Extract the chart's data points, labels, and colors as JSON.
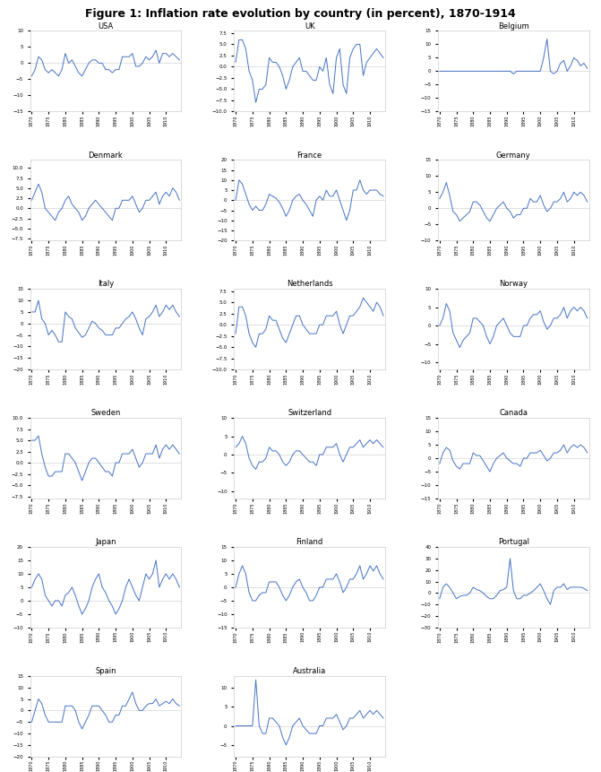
{
  "title": "Figure 1: Inflation rate evolution by country (in percent), 1870-1914",
  "years": [
    1870,
    1871,
    1872,
    1873,
    1874,
    1875,
    1876,
    1877,
    1878,
    1879,
    1880,
    1881,
    1882,
    1883,
    1884,
    1885,
    1886,
    1887,
    1888,
    1889,
    1890,
    1891,
    1892,
    1893,
    1894,
    1895,
    1896,
    1897,
    1898,
    1899,
    1900,
    1901,
    1902,
    1903,
    1904,
    1905,
    1906,
    1907,
    1908,
    1909,
    1910,
    1911,
    1912,
    1913,
    1914
  ],
  "line_color": "#4472C4",
  "countries": {
    "USA": [
      -4,
      -2,
      2,
      1,
      -2,
      -3,
      -2,
      -3,
      -4,
      -2,
      3,
      0,
      1,
      -1,
      -3,
      -4,
      -2,
      0,
      1,
      1,
      0,
      0,
      -2,
      -2,
      -3,
      -2,
      -2,
      2,
      2,
      2,
      3,
      -1,
      -1,
      0,
      2,
      1,
      2,
      4,
      0,
      3,
      3,
      2,
      3,
      2,
      1
    ],
    "UK": [
      1,
      6,
      6,
      4,
      -1,
      -3,
      -8,
      -5,
      -5,
      -4,
      2,
      1,
      1,
      0,
      -2,
      -5,
      -3,
      0,
      1,
      2,
      -1,
      -1,
      -2,
      -3,
      -3,
      0,
      -1,
      2,
      -4,
      -6,
      2,
      4,
      -4,
      -6,
      2,
      4,
      5,
      5,
      -2,
      1,
      2,
      3,
      4,
      3,
      2
    ],
    "Belgium": [
      0,
      0,
      0,
      0,
      0,
      0,
      0,
      0,
      0,
      0,
      0,
      0,
      0,
      0,
      0,
      0,
      0,
      0,
      0,
      0,
      0,
      0,
      -1,
      0,
      0,
      0,
      0,
      0,
      0,
      0,
      0,
      5,
      12,
      0,
      -1,
      0,
      3,
      4,
      0,
      2,
      5,
      4,
      2,
      3,
      1
    ],
    "Denmark": [
      2,
      4,
      6,
      4,
      0,
      -1,
      -2,
      -3,
      -1,
      0,
      2,
      3,
      1,
      0,
      -1,
      -3,
      -2,
      0,
      1,
      2,
      1,
      0,
      -1,
      -2,
      -3,
      0,
      0,
      2,
      2,
      2,
      3,
      1,
      -1,
      0,
      2,
      2,
      3,
      4,
      1,
      3,
      4,
      3,
      5,
      4,
      2
    ],
    "France": [
      0,
      10,
      8,
      3,
      -2,
      -5,
      -3,
      -5,
      -5,
      -2,
      3,
      2,
      1,
      -1,
      -4,
      -8,
      -5,
      0,
      2,
      3,
      0,
      -2,
      -5,
      -8,
      0,
      2,
      0,
      5,
      2,
      2,
      5,
      0,
      -5,
      -10,
      -5,
      5,
      5,
      10,
      5,
      3,
      5,
      5,
      5,
      3,
      2
    ],
    "Germany": [
      3,
      5,
      8,
      4,
      -1,
      -2,
      -4,
      -3,
      -2,
      -1,
      2,
      2,
      1,
      -1,
      -3,
      -4,
      -2,
      0,
      1,
      2,
      0,
      -1,
      -3,
      -2,
      -2,
      0,
      0,
      3,
      2,
      2,
      4,
      1,
      -1,
      0,
      2,
      2,
      3,
      5,
      2,
      3,
      5,
      4,
      5,
      4,
      2
    ],
    "Italy": [
      5,
      5,
      10,
      2,
      0,
      -5,
      -3,
      -5,
      -8,
      -8,
      5,
      3,
      2,
      -2,
      -4,
      -6,
      -5,
      -2,
      1,
      0,
      -2,
      -3,
      -5,
      -5,
      -5,
      -2,
      -2,
      0,
      2,
      3,
      5,
      2,
      -2,
      -5,
      2,
      3,
      5,
      8,
      3,
      5,
      8,
      6,
      8,
      5,
      3
    ],
    "Netherlands": [
      -2,
      4,
      4,
      2,
      -2,
      -4,
      -5,
      -2,
      -2,
      -1,
      2,
      1,
      1,
      -1,
      -3,
      -4,
      -2,
      0,
      2,
      2,
      0,
      -1,
      -2,
      -2,
      -2,
      0,
      0,
      2,
      2,
      2,
      3,
      0,
      -2,
      0,
      2,
      2,
      3,
      4,
      6,
      5,
      4,
      3,
      5,
      4,
      2
    ],
    "Norway": [
      0,
      2,
      6,
      4,
      -2,
      -4,
      -6,
      -4,
      -3,
      -2,
      2,
      2,
      1,
      0,
      -3,
      -5,
      -3,
      0,
      1,
      2,
      0,
      -2,
      -3,
      -3,
      -3,
      0,
      0,
      2,
      3,
      3,
      4,
      1,
      -1,
      0,
      2,
      2,
      3,
      5,
      2,
      4,
      5,
      4,
      5,
      4,
      2
    ],
    "Sweden": [
      5,
      5,
      6,
      2,
      -1,
      -3,
      -3,
      -2,
      -2,
      -2,
      2,
      2,
      1,
      0,
      -2,
      -4,
      -2,
      0,
      1,
      1,
      0,
      -1,
      -2,
      -2,
      -3,
      0,
      0,
      2,
      2,
      2,
      3,
      1,
      -1,
      0,
      2,
      2,
      2,
      4,
      1,
      3,
      4,
      3,
      4,
      3,
      2
    ],
    "Switzerland": [
      2,
      3,
      5,
      3,
      -1,
      -3,
      -4,
      -2,
      -2,
      -1,
      2,
      1,
      1,
      0,
      -2,
      -3,
      -2,
      0,
      1,
      1,
      0,
      -1,
      -2,
      -2,
      -3,
      0,
      0,
      2,
      2,
      2,
      3,
      0,
      -2,
      0,
      2,
      2,
      3,
      4,
      2,
      3,
      4,
      3,
      4,
      3,
      2
    ],
    "Canada": [
      -2,
      2,
      4,
      3,
      -1,
      -3,
      -4,
      -2,
      -2,
      -2,
      2,
      1,
      1,
      -1,
      -3,
      -5,
      -2,
      0,
      1,
      2,
      0,
      -1,
      -2,
      -2,
      -3,
      0,
      0,
      2,
      2,
      2,
      3,
      1,
      -1,
      0,
      2,
      2,
      3,
      5,
      2,
      4,
      5,
      4,
      5,
      4,
      2
    ],
    "Japan": [
      5,
      8,
      10,
      8,
      2,
      0,
      -2,
      0,
      0,
      -2,
      2,
      3,
      5,
      2,
      -2,
      -5,
      -3,
      0,
      5,
      8,
      10,
      5,
      3,
      0,
      -2,
      -5,
      -3,
      0,
      5,
      8,
      5,
      2,
      0,
      5,
      10,
      8,
      10,
      15,
      5,
      8,
      10,
      8,
      10,
      8,
      5
    ],
    "Finland": [
      0,
      5,
      8,
      5,
      -2,
      -5,
      -5,
      -3,
      -2,
      -2,
      2,
      2,
      2,
      0,
      -3,
      -5,
      -3,
      0,
      2,
      3,
      0,
      -2,
      -5,
      -5,
      -3,
      0,
      0,
      3,
      3,
      3,
      5,
      2,
      -2,
      0,
      3,
      3,
      5,
      8,
      3,
      5,
      8,
      6,
      8,
      5,
      3
    ],
    "Portugal": [
      -5,
      5,
      8,
      5,
      0,
      -5,
      -3,
      -2,
      -2,
      0,
      5,
      3,
      2,
      0,
      -3,
      -5,
      -5,
      -2,
      2,
      3,
      5,
      30,
      2,
      -5,
      -5,
      -2,
      -2,
      0,
      2,
      5,
      8,
      2,
      -5,
      -10,
      2,
      5,
      5,
      8,
      3,
      5,
      5,
      5,
      5,
      4,
      2
    ],
    "Spain": [
      -5,
      0,
      5,
      3,
      -2,
      -5,
      -5,
      -5,
      -5,
      -5,
      2,
      2,
      2,
      0,
      -5,
      -8,
      -5,
      -2,
      2,
      2,
      2,
      0,
      -2,
      -5,
      -5,
      -2,
      -2,
      2,
      2,
      5,
      8,
      3,
      0,
      0,
      2,
      3,
      3,
      5,
      2,
      3,
      4,
      3,
      5,
      3,
      2
    ],
    "Australia": [
      0,
      0,
      0,
      0,
      0,
      0,
      12,
      0,
      -2,
      -2,
      2,
      2,
      1,
      0,
      -3,
      -5,
      -3,
      0,
      1,
      2,
      0,
      -1,
      -2,
      -2,
      -2,
      0,
      0,
      2,
      2,
      2,
      3,
      1,
      -1,
      0,
      2,
      2,
      3,
      4,
      2,
      3,
      4,
      3,
      4,
      3,
      2
    ]
  },
  "ylims": {
    "USA": [
      -15,
      10
    ],
    "UK": [
      -10,
      8
    ],
    "Belgium": [
      -15,
      15
    ],
    "Denmark": [
      -8,
      12
    ],
    "France": [
      -20,
      20
    ],
    "Germany": [
      -10,
      15
    ],
    "Italy": [
      -20,
      15
    ],
    "Netherlands": [
      -10,
      8
    ],
    "Norway": [
      -12,
      10
    ],
    "Sweden": [
      -8,
      10
    ],
    "Switzerland": [
      -12,
      10
    ],
    "Canada": [
      -15,
      15
    ],
    "Japan": [
      -10,
      20
    ],
    "Finland": [
      -15,
      15
    ],
    "Portugal": [
      -30,
      40
    ],
    "Spain": [
      -20,
      15
    ],
    "Australia": [
      -8,
      13
    ]
  },
  "layout": [
    [
      "USA",
      "UK",
      "Belgium"
    ],
    [
      "Denmark",
      "France",
      "Germany"
    ],
    [
      "Italy",
      "Netherlands",
      "Norway"
    ],
    [
      "Sweden",
      "Switzerland",
      "Canada"
    ],
    [
      "Japan",
      "Finland",
      "Portugal"
    ],
    [
      "Spain",
      "Australia",
      null
    ]
  ]
}
